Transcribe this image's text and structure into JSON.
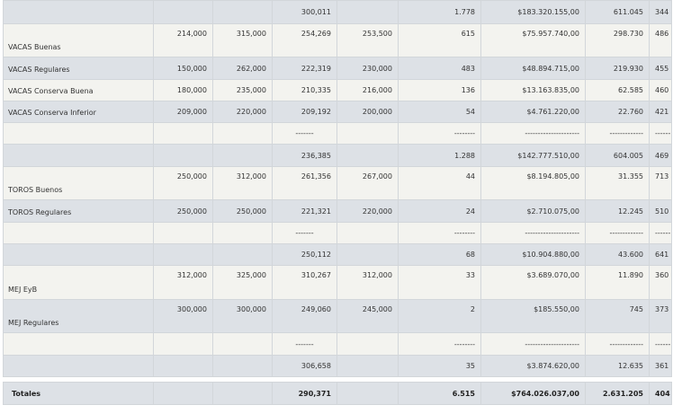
{
  "rows": [
    {
      "kind": "band",
      "h": 26,
      "top": false,
      "label": "",
      "c1": "",
      "c2": "",
      "c3": "300,011",
      "c4": "",
      "c5": "1.778",
      "c6": "$183.320.155,00",
      "c7": "611.045",
      "c8": "344"
    },
    {
      "kind": "plain",
      "h": 37,
      "top": true,
      "label": "VACAS Buenas",
      "c1": "214,000",
      "c2": "315,000",
      "c3": "254,269",
      "c4": "253,500",
      "c5": "615",
      "c6": "$75.957.740,00",
      "c7": "298.730",
      "c8": "486"
    },
    {
      "kind": "band",
      "h": 25,
      "top": false,
      "label": "VACAS Regulares",
      "c1": "150,000",
      "c2": "262,000",
      "c3": "222,319",
      "c4": "230,000",
      "c5": "483",
      "c6": "$48.894.715,00",
      "c7": "219.930",
      "c8": "455"
    },
    {
      "kind": "plain",
      "h": 24,
      "top": false,
      "label": "VACAS Conserva Buena",
      "c1": "180,000",
      "c2": "235,000",
      "c3": "210,335",
      "c4": "216,000",
      "c5": "136",
      "c6": "$13.163.835,00",
      "c7": "62.585",
      "c8": "460"
    },
    {
      "kind": "band",
      "h": 24,
      "top": false,
      "label": "VACAS Conserva Inferior",
      "c1": "209,000",
      "c2": "220,000",
      "c3": "209,192",
      "c4": "200,000",
      "c5": "54",
      "c6": "$4.761.220,00",
      "c7": "22.760",
      "c8": "421"
    },
    {
      "kind": "plain",
      "h": 24,
      "top": false,
      "label": "",
      "c1": "",
      "c2": "",
      "c3": "-------",
      "c4": "",
      "c5": "--------",
      "c6": "---------------------",
      "c7": "-------------",
      "c8": "------",
      "dash": true
    },
    {
      "kind": "band",
      "h": 25,
      "top": false,
      "label": "",
      "c1": "",
      "c2": "",
      "c3": "236,385",
      "c4": "",
      "c5": "1.288",
      "c6": "$142.777.510,00",
      "c7": "604.005",
      "c8": "469"
    },
    {
      "kind": "plain",
      "h": 37,
      "top": true,
      "label": "TOROS Buenos",
      "c1": "250,000",
      "c2": "312,000",
      "c3": "261,356",
      "c4": "267,000",
      "c5": "44",
      "c6": "$8.194.805,00",
      "c7": "31.355",
      "c8": "713"
    },
    {
      "kind": "band",
      "h": 25,
      "top": false,
      "label": "TOROS Regulares",
      "c1": "250,000",
      "c2": "250,000",
      "c3": "221,321",
      "c4": "220,000",
      "c5": "24",
      "c6": "$2.710.075,00",
      "c7": "12.245",
      "c8": "510"
    },
    {
      "kind": "plain",
      "h": 24,
      "top": false,
      "label": "",
      "c1": "",
      "c2": "",
      "c3": "-------",
      "c4": "",
      "c5": "--------",
      "c6": "---------------------",
      "c7": "-------------",
      "c8": "------",
      "dash": true
    },
    {
      "kind": "band",
      "h": 24,
      "top": false,
      "label": "",
      "c1": "",
      "c2": "",
      "c3": "250,112",
      "c4": "",
      "c5": "68",
      "c6": "$10.904.880,00",
      "c7": "43.600",
      "c8": "641"
    },
    {
      "kind": "plain",
      "h": 38,
      "top": true,
      "label": "MEJ EyB",
      "c1": "312,000",
      "c2": "325,000",
      "c3": "310,267",
      "c4": "312,000",
      "c5": "33",
      "c6": "$3.689.070,00",
      "c7": "11.890",
      "c8": "360"
    },
    {
      "kind": "band",
      "h": 37,
      "top": true,
      "label": "MEJ Regulares",
      "c1": "300,000",
      "c2": "300,000",
      "c3": "249,060",
      "c4": "245,000",
      "c5": "2",
      "c6": "$185.550,00",
      "c7": "745",
      "c8": "373"
    },
    {
      "kind": "plain",
      "h": 25,
      "top": false,
      "label": "",
      "c1": "",
      "c2": "",
      "c3": "-------",
      "c4": "",
      "c5": "--------",
      "c6": "---------------------",
      "c7": "-------------",
      "c8": "------",
      "dash": true
    },
    {
      "kind": "band",
      "h": 24,
      "top": false,
      "label": "",
      "c1": "",
      "c2": "",
      "c3": "306,658",
      "c4": "",
      "c5": "35",
      "c6": "$3.874.620,00",
      "c7": "12.635",
      "c8": "361"
    },
    {
      "kind": "gap",
      "h": 6
    },
    {
      "kind": "total",
      "h": 25,
      "top": false,
      "label": "Totales",
      "c1": "",
      "c2": "",
      "c3": "290,371",
      "c4": "",
      "c5": "6.515",
      "c6": "$764.026.037,00",
      "c7": "2.631.205",
      "c8": "404"
    }
  ]
}
